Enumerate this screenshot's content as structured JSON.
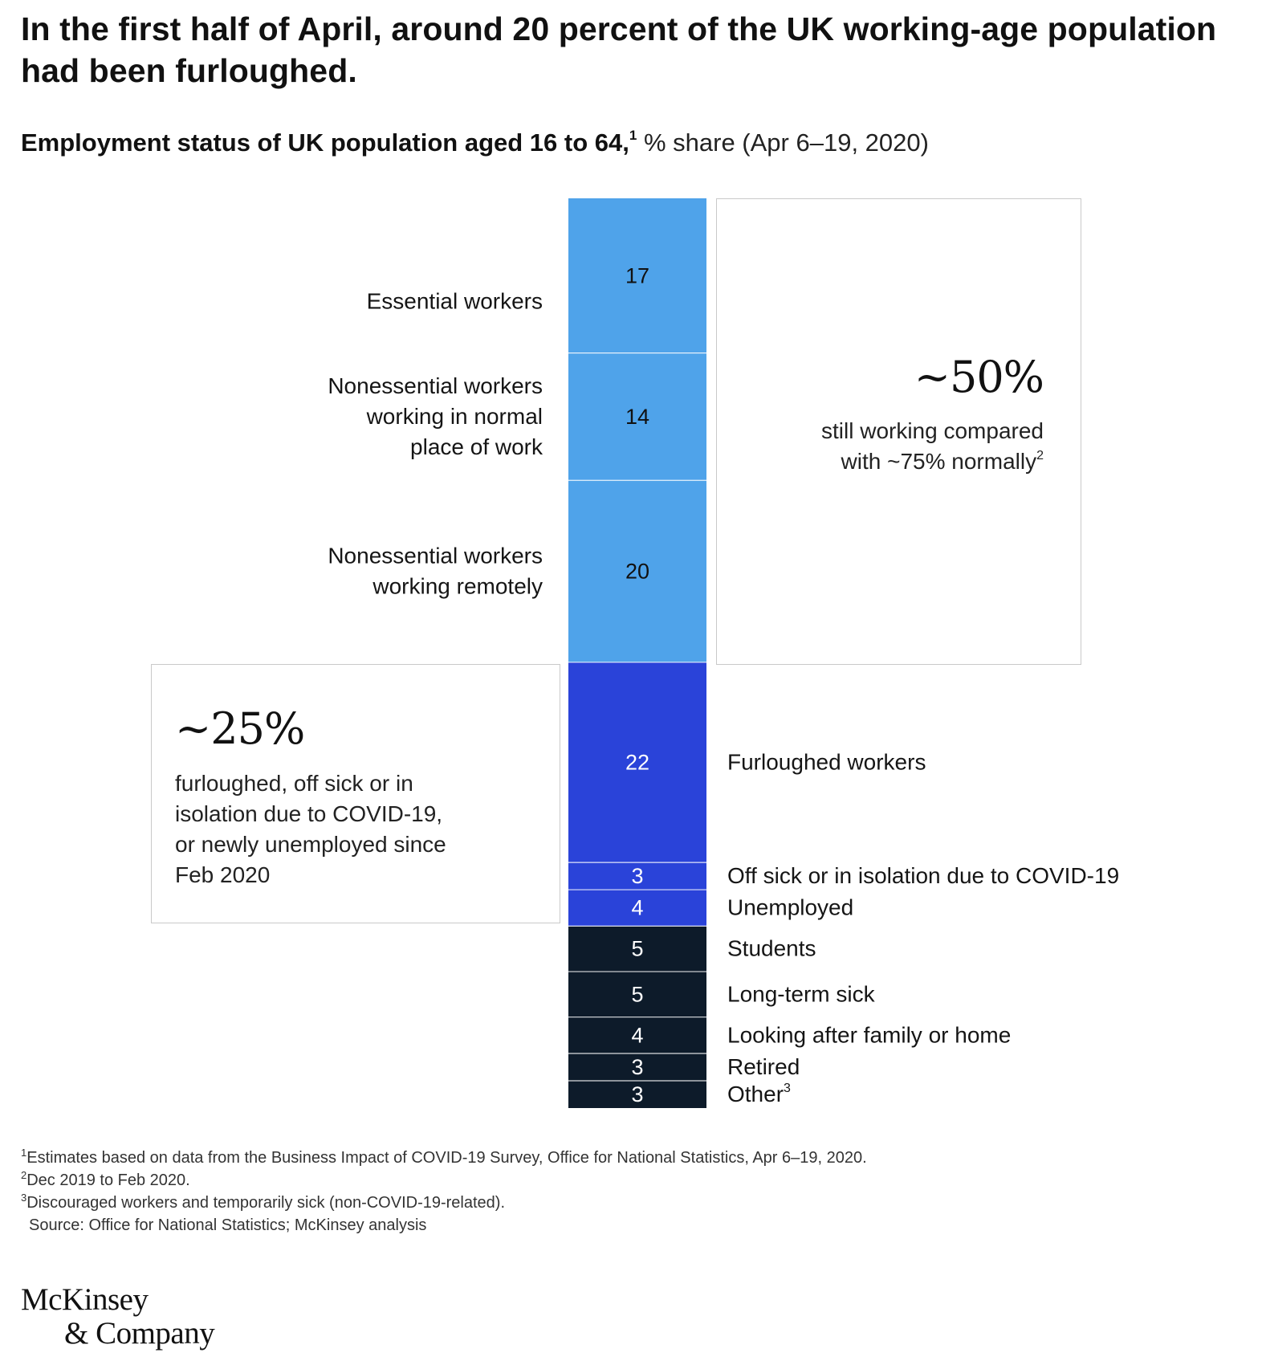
{
  "headline": "In the first half of April, around 20 percent of the UK working-age population had been furloughed.",
  "subtitle": {
    "main": "Employment status of UK population aged 16 to 64,",
    "marker": "1",
    "unit": "% share (Apr 6–19, 2020)"
  },
  "callout_working": {
    "big": "~50%",
    "line1": "still working compared",
    "line2": "with ~75% normally",
    "marker": "2"
  },
  "callout_furloughed": {
    "big": "~25%",
    "lines": [
      "furloughed, off sick or in",
      "isolation due to COVID-19,",
      "or newly unemployed since",
      "Feb 2020"
    ]
  },
  "colors": {
    "working": "#4fa3ea",
    "furloughed": "#2a43d9",
    "inactive": "#0d1b2a",
    "label_dark_text": "#111111",
    "label_light_text": "#ffffff"
  },
  "chart_data": {
    "type": "bar",
    "stacked": true,
    "orientation": "vertical",
    "title": "Employment status of UK population aged 16 to 64",
    "unit": "% share (Apr 6–19, 2020)",
    "segments": [
      {
        "label": "Essential workers",
        "value": 17,
        "group": "working"
      },
      {
        "label": "Nonessential workers working in normal place of work",
        "value": 14,
        "group": "working"
      },
      {
        "label": "Nonessential workers working remotely",
        "value": 20,
        "group": "working"
      },
      {
        "label": "Furloughed workers",
        "value": 22,
        "group": "furloughed"
      },
      {
        "label": "Off sick or in isolation due to COVID-19",
        "value": 3,
        "group": "furloughed"
      },
      {
        "label": "Unemployed",
        "value": 4,
        "group": "furloughed"
      },
      {
        "label": "Students",
        "value": 5,
        "group": "inactive"
      },
      {
        "label": "Long-term sick",
        "value": 5,
        "group": "inactive"
      },
      {
        "label": "Looking after family or home",
        "value": 4,
        "group": "inactive"
      },
      {
        "label": "Retired",
        "value": 3,
        "group": "inactive"
      },
      {
        "label": "Other",
        "value": 3,
        "group": "inactive",
        "marker": "3"
      }
    ],
    "label_lines": [
      [
        "Essential workers"
      ],
      [
        "Nonessential workers",
        "working in normal",
        "place of work"
      ],
      [
        "Nonessential workers",
        "working remotely"
      ],
      [
        "Furloughed workers"
      ],
      [
        "Off sick or in isolation due to COVID-19"
      ],
      [
        "Unemployed"
      ],
      [
        "Students"
      ],
      [
        "Long-term sick"
      ],
      [
        "Looking after family or home"
      ],
      [
        "Retired"
      ],
      [
        "Other"
      ]
    ]
  },
  "footnotes": {
    "fn1": "Estimates based on data from the Business Impact of COVID-19 Survey, Office for National Statistics, Apr 6–19, 2020.",
    "fn2": "Dec 2019 to Feb 2020.",
    "fn3": "Discouraged workers and temporarily sick (non-COVID-19-related).",
    "source": "Source: Office for National Statistics; McKinsey analysis"
  },
  "logo": {
    "line1": "McKinsey",
    "line2": "& Company"
  }
}
